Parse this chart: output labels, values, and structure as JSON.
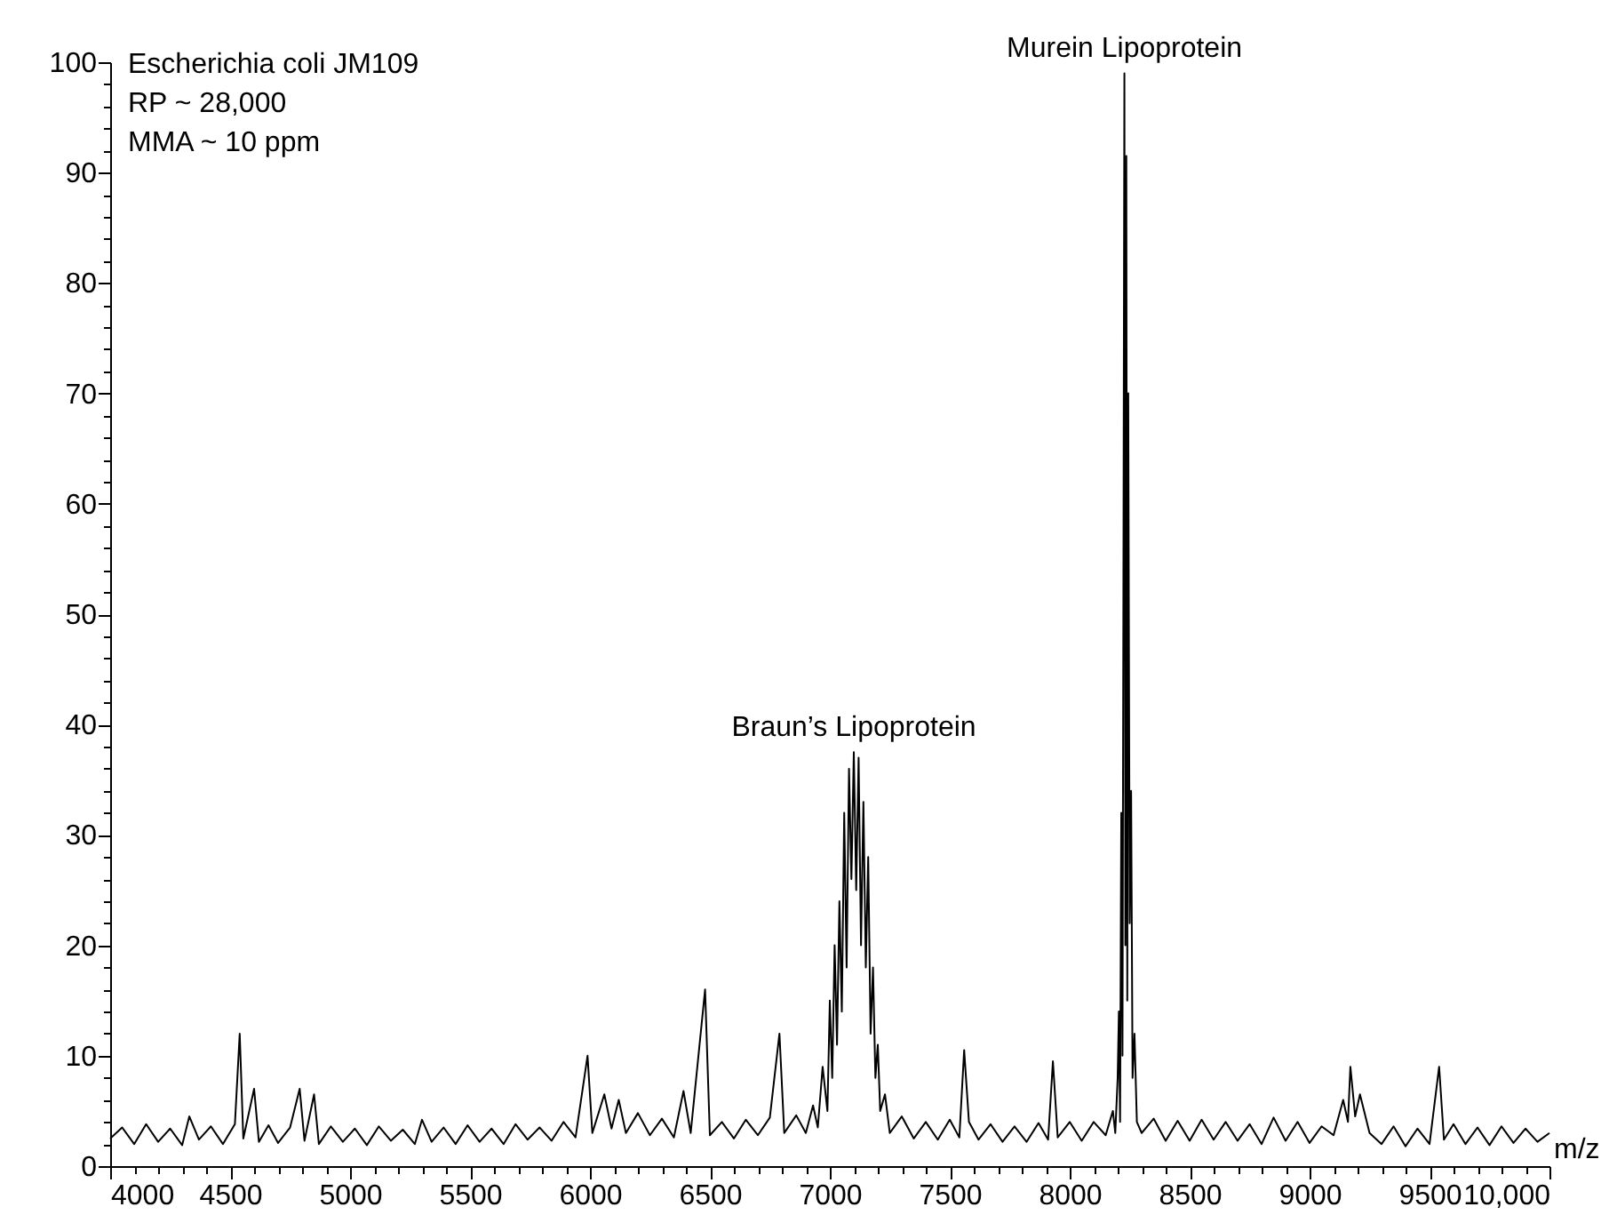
{
  "chart_data": {
    "type": "line",
    "xlabel": "m/z",
    "annotations": [
      "Escherichia coli JM109",
      "RP ~ 28,000",
      "MMA ~ 10 ppm",
      {
        "text": "Braun’s Lipoprotein",
        "x": 7100,
        "y": 37.5
      },
      {
        "text": "Murein Lipoprotein",
        "x": 8228,
        "y": 99
      }
    ],
    "series": [
      {
        "color": "#000000",
        "x": [
          4000,
          4050,
          4100,
          4150,
          4200,
          4250,
          4300,
          4330,
          4370,
          4420,
          4470,
          4520,
          4540,
          4555,
          4600,
          4620,
          4660,
          4700,
          4750,
          4790,
          4810,
          4850,
          4870,
          4920,
          4970,
          5020,
          5070,
          5120,
          5170,
          5220,
          5270,
          5300,
          5340,
          5390,
          5440,
          5490,
          5540,
          5590,
          5640,
          5690,
          5740,
          5790,
          5840,
          5890,
          5940,
          5990,
          6010,
          6060,
          6090,
          6120,
          6150,
          6200,
          6250,
          6300,
          6350,
          6390,
          6420,
          6480,
          6500,
          6550,
          6600,
          6650,
          6700,
          6750,
          6790,
          6810,
          6860,
          6900,
          6930,
          6950,
          6970,
          6990,
          7000,
          7010,
          7020,
          7030,
          7040,
          7050,
          7060,
          7070,
          7080,
          7090,
          7100,
          7110,
          7120,
          7130,
          7140,
          7150,
          7160,
          7170,
          7180,
          7190,
          7200,
          7210,
          7230,
          7250,
          7300,
          7350,
          7400,
          7450,
          7500,
          7540,
          7560,
          7580,
          7620,
          7670,
          7720,
          7770,
          7820,
          7870,
          7910,
          7930,
          7950,
          8000,
          8050,
          8100,
          8150,
          8180,
          8190,
          8200,
          8205,
          8210,
          8215,
          8220,
          8228,
          8232,
          8236,
          8240,
          8244,
          8250,
          8256,
          8262,
          8270,
          8280,
          8300,
          8350,
          8400,
          8450,
          8500,
          8550,
          8600,
          8650,
          8700,
          8750,
          8800,
          8850,
          8900,
          8950,
          9000,
          9050,
          9100,
          9140,
          9160,
          9170,
          9190,
          9210,
          9250,
          9300,
          9350,
          9400,
          9450,
          9500,
          9540,
          9560,
          9600,
          9650,
          9700,
          9750,
          9800,
          9850,
          9900,
          9950,
          10000
        ],
        "values": [
          2.5,
          3.5,
          2,
          3.8,
          2.2,
          3.4,
          1.9,
          4.5,
          2.4,
          3.6,
          2,
          3.8,
          12,
          2.5,
          7,
          2.2,
          3.7,
          2.1,
          3.5,
          7,
          2.3,
          6.5,
          2,
          3.6,
          2.2,
          3.4,
          1.9,
          3.6,
          2.3,
          3.3,
          2,
          4.2,
          2.2,
          3.5,
          2,
          3.7,
          2.2,
          3.4,
          2,
          3.8,
          2.4,
          3.5,
          2.3,
          4,
          2.6,
          10,
          3,
          6.5,
          3.4,
          6,
          3,
          4.8,
          2.8,
          4.3,
          2.6,
          6.8,
          3,
          16,
          2.8,
          4,
          2.5,
          4.2,
          2.8,
          4.4,
          12,
          3,
          4.6,
          3,
          5.5,
          3.5,
          9,
          5,
          15,
          8,
          20,
          11,
          24,
          14,
          32,
          18,
          36,
          26,
          37.5,
          25,
          37,
          20,
          33,
          18,
          28,
          12,
          18,
          8,
          11,
          5,
          6.5,
          3,
          4.5,
          2.5,
          4,
          2.4,
          4.2,
          2.6,
          10.5,
          4,
          2.4,
          3.8,
          2.2,
          3.6,
          2.2,
          3.9,
          2.4,
          9.5,
          2.6,
          4,
          2.3,
          4,
          2.8,
          5,
          3,
          8,
          14,
          4,
          32,
          10,
          99,
          20,
          91.5,
          15,
          70,
          22,
          34,
          8,
          12,
          4,
          3,
          4.3,
          2.3,
          4.1,
          2.3,
          4.2,
          2.4,
          4,
          2.3,
          3.8,
          2,
          4.4,
          2.3,
          4,
          2.1,
          3.6,
          2.8,
          6,
          4,
          9,
          4.5,
          6.5,
          3,
          2,
          3.6,
          1.8,
          3.4,
          2,
          9,
          2.4,
          3.8,
          2,
          3.5,
          1.9,
          3.6,
          2.1,
          3.4,
          2.2,
          3
        ]
      }
    ],
    "xlim": [
      4000,
      10000
    ],
    "xticks": [
      4000,
      {
        "value": 4100,
        "label": null
      },
      {
        "value": 4200,
        "label": null
      },
      {
        "value": 4300,
        "label": null
      },
      {
        "value": 4400,
        "label": null
      },
      4500,
      {
        "value": 4600,
        "label": null
      },
      {
        "value": 4700,
        "label": null
      },
      {
        "value": 4800,
        "label": null
      },
      {
        "value": 4900,
        "label": null
      },
      5000,
      {
        "value": 5100,
        "label": null
      },
      {
        "value": 5200,
        "label": null
      },
      {
        "value": 5300,
        "label": null
      },
      {
        "value": 5400,
        "label": null
      },
      5500,
      {
        "value": 5600,
        "label": null
      },
      {
        "value": 5700,
        "label": null
      },
      {
        "value": 5800,
        "label": null
      },
      {
        "value": 5900,
        "label": null
      },
      6000,
      {
        "value": 6100,
        "label": null
      },
      {
        "value": 6200,
        "label": null
      },
      {
        "value": 6300,
        "label": null
      },
      {
        "value": 6400,
        "label": null
      },
      6500,
      {
        "value": 6600,
        "label": null
      },
      {
        "value": 6700,
        "label": null
      },
      {
        "value": 6800,
        "label": null
      },
      {
        "value": 6900,
        "label": null
      },
      7000,
      {
        "value": 7100,
        "label": null
      },
      {
        "value": 7200,
        "label": null
      },
      {
        "value": 7300,
        "label": null
      },
      {
        "value": 7400,
        "label": null
      },
      7500,
      {
        "value": 7600,
        "label": null
      },
      {
        "value": 7700,
        "label": null
      },
      {
        "value": 7800,
        "label": null
      },
      {
        "value": 7900,
        "label": null
      },
      8000,
      {
        "value": 8100,
        "label": null
      },
      {
        "value": 8200,
        "label": null
      },
      {
        "value": 8300,
        "label": null
      },
      {
        "value": 8400,
        "label": null
      },
      8500,
      {
        "value": 8600,
        "label": null
      },
      {
        "value": 8700,
        "label": null
      },
      {
        "value": 8800,
        "label": null
      },
      {
        "value": 8900,
        "label": null
      },
      9000,
      {
        "value": 9100,
        "label": null
      },
      {
        "value": 9200,
        "label": null
      },
      {
        "value": 9300,
        "label": null
      },
      {
        "value": 9400,
        "label": null
      },
      9500,
      {
        "value": 9600,
        "label": null
      },
      {
        "value": 9700,
        "label": null
      },
      {
        "value": 9800,
        "label": null
      },
      {
        "value": 9900,
        "label": null
      },
      {
        "value": 10000,
        "label": "10,000"
      }
    ],
    "ylim": [
      0,
      100
    ],
    "yticks": [
      0,
      {
        "value": 2,
        "label": null
      },
      {
        "value": 4,
        "label": null
      },
      {
        "value": 6,
        "label": null
      },
      {
        "value": 8,
        "label": null
      },
      10,
      {
        "value": 12,
        "label": null
      },
      {
        "value": 14,
        "label": null
      },
      {
        "value": 16,
        "label": null
      },
      {
        "value": 18,
        "label": null
      },
      20,
      {
        "value": 22,
        "label": null
      },
      {
        "value": 24,
        "label": null
      },
      {
        "value": 26,
        "label": null
      },
      {
        "value": 28,
        "label": null
      },
      30,
      {
        "value": 32,
        "label": null
      },
      {
        "value": 34,
        "label": null
      },
      {
        "value": 36,
        "label": null
      },
      {
        "value": 38,
        "label": null
      },
      40,
      {
        "value": 42,
        "label": null
      },
      {
        "value": 44,
        "label": null
      },
      {
        "value": 46,
        "label": null
      },
      {
        "value": 48,
        "label": null
      },
      50,
      {
        "value": 52,
        "label": null
      },
      {
        "value": 54,
        "label": null
      },
      {
        "value": 56,
        "label": null
      },
      {
        "value": 58,
        "label": null
      },
      60,
      {
        "value": 62,
        "label": null
      },
      {
        "value": 64,
        "label": null
      },
      {
        "value": 66,
        "label": null
      },
      {
        "value": 68,
        "label": null
      },
      70,
      {
        "value": 72,
        "label": null
      },
      {
        "value": 74,
        "label": null
      },
      {
        "value": 76,
        "label": null
      },
      {
        "value": 78,
        "label": null
      },
      80,
      {
        "value": 82,
        "label": null
      },
      {
        "value": 84,
        "label": null
      },
      {
        "value": 86,
        "label": null
      },
      {
        "value": 88,
        "label": null
      },
      90,
      {
        "value": 92,
        "label": null
      },
      {
        "value": 94,
        "label": null
      },
      {
        "value": 96,
        "label": null
      },
      {
        "value": 98,
        "label": null
      },
      100
    ],
    "grid": false
  }
}
